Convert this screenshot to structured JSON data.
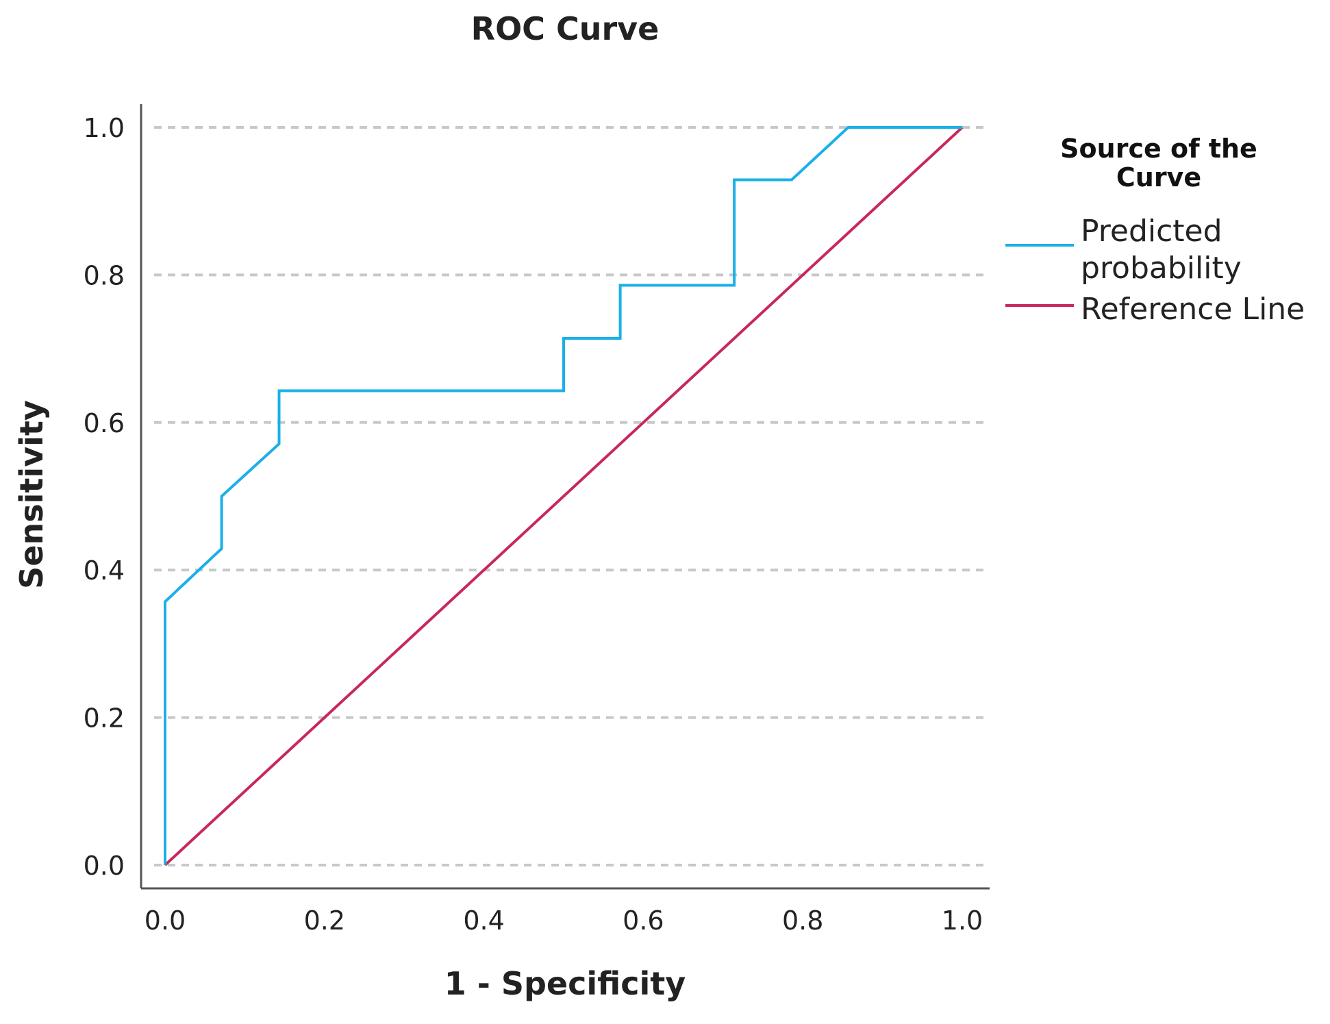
{
  "chart_data": {
    "type": "line",
    "title": "ROC Curve",
    "xlabel": "1 - Specificity",
    "ylabel": "Sensitivity",
    "xlim": [
      0,
      1
    ],
    "ylim": [
      0,
      1
    ],
    "x_ticks": [
      "0.0",
      "0.2",
      "0.4",
      "0.6",
      "0.8",
      "1.0"
    ],
    "y_ticks": [
      "0.0",
      "0.2",
      "0.4",
      "0.6",
      "0.8",
      "1.0"
    ],
    "grid": "horizontal-dashed",
    "legend": {
      "title_lines": [
        "Source of the",
        "Curve"
      ],
      "placement": "right"
    },
    "series": [
      {
        "name_lines": [
          "Predicted",
          "probability"
        ],
        "color": "#1ab0e8",
        "x": [
          0.0,
          0.0,
          0.071,
          0.071,
          0.143,
          0.143,
          0.5,
          0.5,
          0.571,
          0.571,
          0.714,
          0.714,
          0.786,
          0.857,
          1.0
        ],
        "y": [
          0.0,
          0.357,
          0.429,
          0.5,
          0.571,
          0.643,
          0.643,
          0.714,
          0.714,
          0.786,
          0.786,
          0.929,
          0.929,
          1.0,
          1.0
        ]
      },
      {
        "name_lines": [
          "Reference Line"
        ],
        "color": "#c8285a",
        "x": [
          0.0,
          1.0
        ],
        "y": [
          0.0,
          1.0
        ]
      }
    ]
  }
}
